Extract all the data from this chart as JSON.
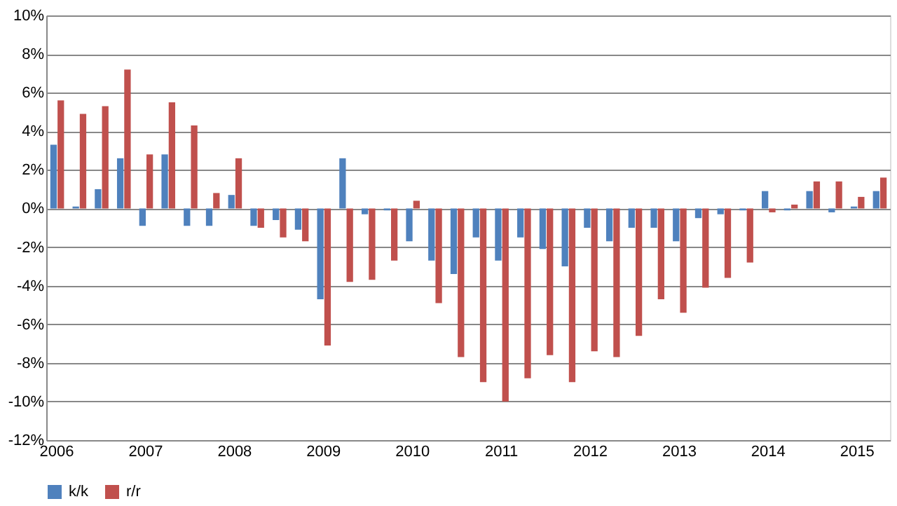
{
  "chart_data": {
    "type": "bar",
    "categories": [
      "2006",
      null,
      null,
      null,
      "2007",
      null,
      null,
      null,
      "2008",
      null,
      null,
      null,
      "2009",
      null,
      null,
      null,
      "2010",
      null,
      null,
      null,
      "2011",
      null,
      null,
      null,
      "2012",
      null,
      null,
      null,
      "2013",
      null,
      null,
      null,
      "2014",
      null,
      null,
      null,
      "2015",
      null
    ],
    "series": [
      {
        "name": "k/k",
        "color": "#4f81bd",
        "values": [
          3.3,
          0.1,
          1.0,
          2.6,
          -0.9,
          2.8,
          -0.9,
          -0.9,
          0.7,
          -0.9,
          -0.6,
          -1.1,
          -4.7,
          2.6,
          -0.3,
          -0.1,
          -1.7,
          -2.7,
          -3.4,
          -1.5,
          -2.7,
          -1.5,
          -2.1,
          -3.0,
          -1.0,
          -1.7,
          -1.0,
          -1.0,
          -1.7,
          -0.5,
          -0.3,
          -0.1,
          0.9,
          -0.1,
          0.9,
          -0.2,
          0.1,
          0.9
        ]
      },
      {
        "name": "r/r",
        "color": "#c0504d",
        "values": [
          5.6,
          4.9,
          5.3,
          7.2,
          2.8,
          5.5,
          4.3,
          0.8,
          2.6,
          -1.0,
          -1.5,
          -1.7,
          -7.1,
          -3.8,
          -3.7,
          -2.7,
          0.4,
          -4.9,
          -7.7,
          -9.0,
          -10.0,
          -8.8,
          -7.6,
          -9.0,
          -7.4,
          -7.7,
          -6.6,
          -4.7,
          -5.4,
          -4.1,
          -3.6,
          -2.8,
          -0.2,
          0.2,
          1.4,
          1.4,
          0.6,
          1.6
        ]
      }
    ],
    "ylim": [
      -12,
      10
    ],
    "yticks": [
      {
        "value": -12,
        "label": "-12%"
      },
      {
        "value": -10,
        "label": "-10%"
      },
      {
        "value": -8,
        "label": "-8%"
      },
      {
        "value": -6,
        "label": "-6%"
      },
      {
        "value": -4,
        "label": "-4%"
      },
      {
        "value": -2,
        "label": "-2%"
      },
      {
        "value": 0,
        "label": "0%"
      },
      {
        "value": 2,
        "label": "2%"
      },
      {
        "value": 4,
        "label": "4%"
      },
      {
        "value": 6,
        "label": "6%"
      },
      {
        "value": 8,
        "label": "8%"
      },
      {
        "value": 10,
        "label": "10%"
      }
    ],
    "grid": "y",
    "legend": "bottom"
  }
}
